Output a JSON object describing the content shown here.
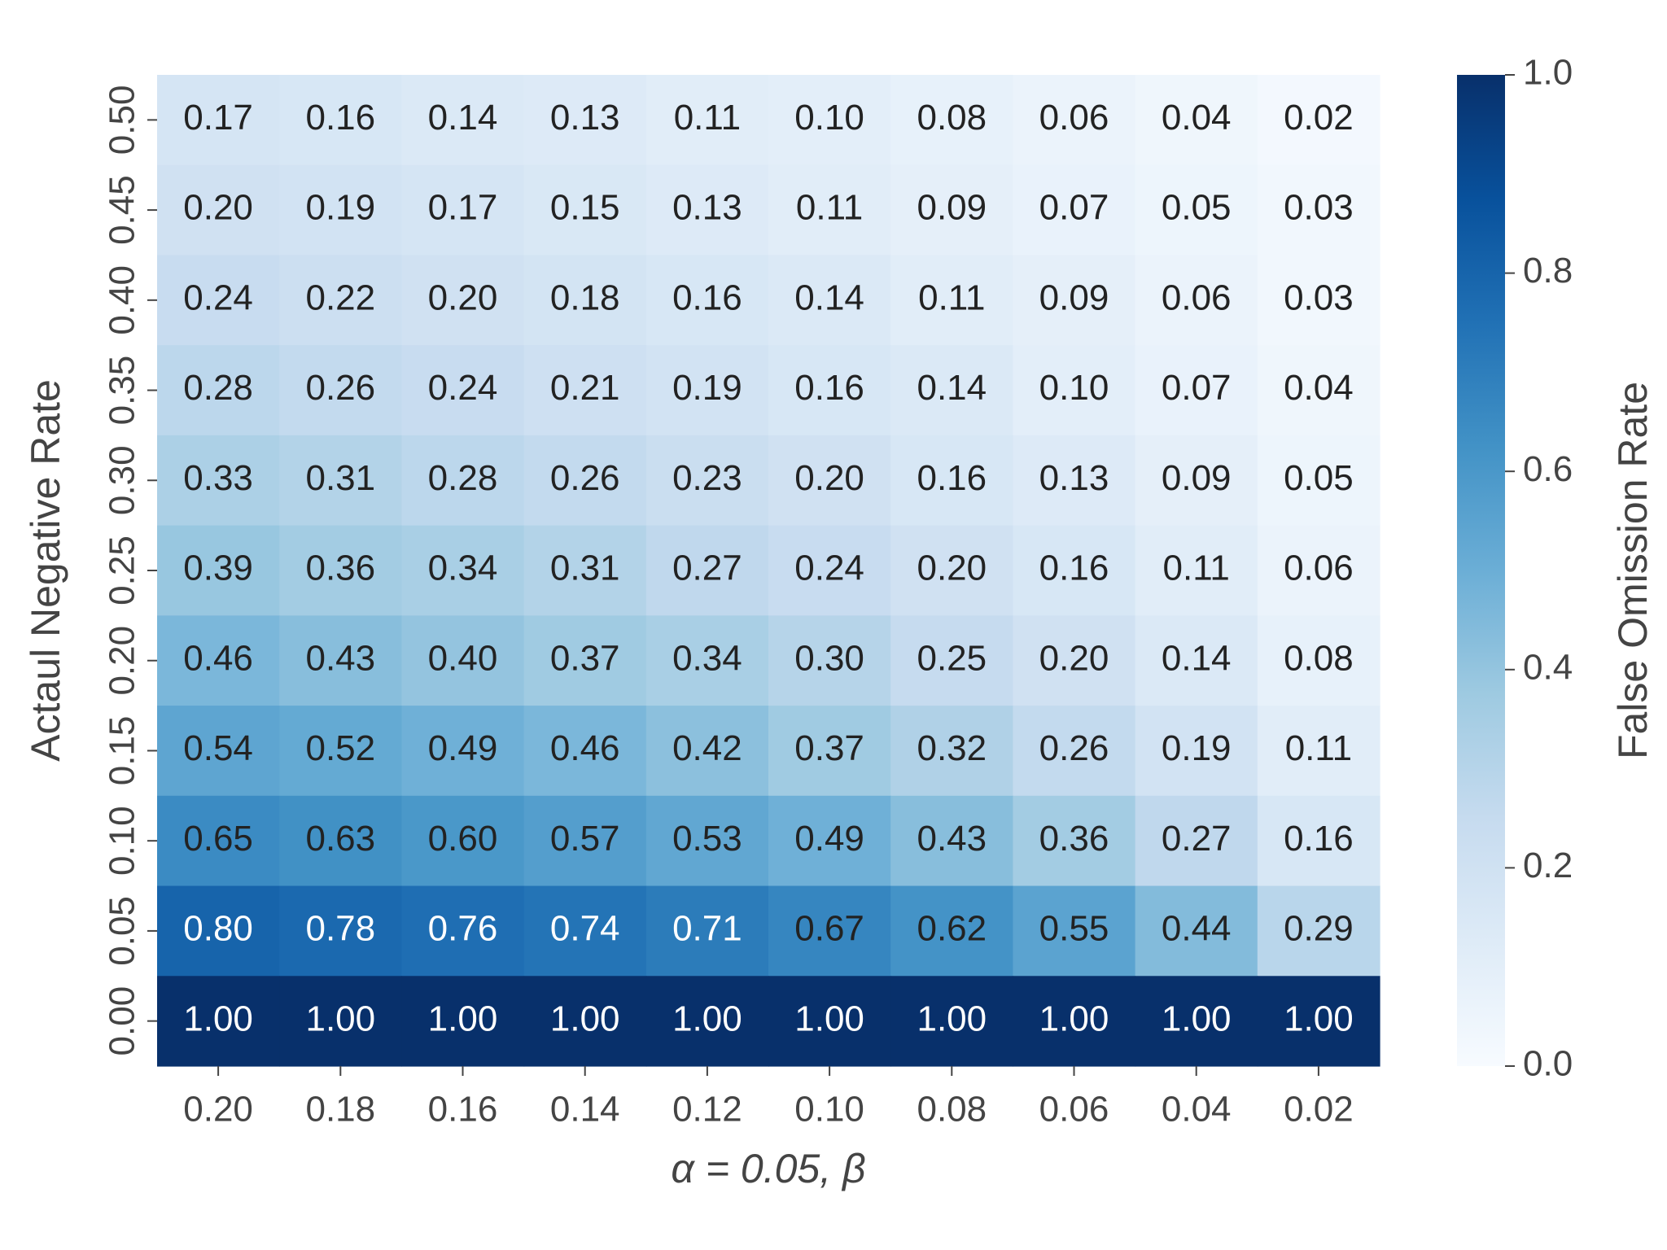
{
  "chart_data": {
    "type": "heatmap",
    "x_label": "α = 0.05, β",
    "y_label": "Actaul Negative Rate",
    "colorbar_label": "False Omission Rate",
    "colormap": "Blues",
    "x_categories": [
      "0.20",
      "0.18",
      "0.16",
      "0.14",
      "0.12",
      "0.10",
      "0.08",
      "0.06",
      "0.04",
      "0.02"
    ],
    "y_categories": [
      "0.50",
      "0.45",
      "0.40",
      "0.35",
      "0.30",
      "0.25",
      "0.20",
      "0.15",
      "0.10",
      "0.05",
      "0.00"
    ],
    "values": [
      [
        0.17,
        0.16,
        0.14,
        0.13,
        0.11,
        0.1,
        0.08,
        0.06,
        0.04,
        0.02
      ],
      [
        0.2,
        0.19,
        0.17,
        0.15,
        0.13,
        0.11,
        0.09,
        0.07,
        0.05,
        0.03
      ],
      [
        0.24,
        0.22,
        0.2,
        0.18,
        0.16,
        0.14,
        0.11,
        0.09,
        0.06,
        0.03
      ],
      [
        0.28,
        0.26,
        0.24,
        0.21,
        0.19,
        0.16,
        0.14,
        0.1,
        0.07,
        0.04
      ],
      [
        0.33,
        0.31,
        0.28,
        0.26,
        0.23,
        0.2,
        0.16,
        0.13,
        0.09,
        0.05
      ],
      [
        0.39,
        0.36,
        0.34,
        0.31,
        0.27,
        0.24,
        0.2,
        0.16,
        0.11,
        0.06
      ],
      [
        0.46,
        0.43,
        0.4,
        0.37,
        0.34,
        0.3,
        0.25,
        0.2,
        0.14,
        0.08
      ],
      [
        0.54,
        0.52,
        0.49,
        0.46,
        0.42,
        0.37,
        0.32,
        0.26,
        0.19,
        0.11
      ],
      [
        0.65,
        0.63,
        0.6,
        0.57,
        0.53,
        0.49,
        0.43,
        0.36,
        0.27,
        0.16
      ],
      [
        0.8,
        0.78,
        0.76,
        0.74,
        0.71,
        0.67,
        0.62,
        0.55,
        0.44,
        0.29
      ],
      [
        1.0,
        1.0,
        1.0,
        1.0,
        1.0,
        1.0,
        1.0,
        1.0,
        1.0,
        1.0
      ]
    ],
    "value_labels": [
      [
        "0.17",
        "0.16",
        "0.14",
        "0.13",
        "0.11",
        "0.10",
        "0.08",
        "0.06",
        "0.04",
        "0.02"
      ],
      [
        "0.20",
        "0.19",
        "0.17",
        "0.15",
        "0.13",
        "0.11",
        "0.09",
        "0.07",
        "0.05",
        "0.03"
      ],
      [
        "0.24",
        "0.22",
        "0.20",
        "0.18",
        "0.16",
        "0.14",
        "0.11",
        "0.09",
        "0.06",
        "0.03"
      ],
      [
        "0.28",
        "0.26",
        "0.24",
        "0.21",
        "0.19",
        "0.16",
        "0.14",
        "0.10",
        "0.07",
        "0.04"
      ],
      [
        "0.33",
        "0.31",
        "0.28",
        "0.26",
        "0.23",
        "0.20",
        "0.16",
        "0.13",
        "0.09",
        "0.05"
      ],
      [
        "0.39",
        "0.36",
        "0.34",
        "0.31",
        "0.27",
        "0.24",
        "0.20",
        "0.16",
        "0.11",
        "0.06"
      ],
      [
        "0.46",
        "0.43",
        "0.40",
        "0.37",
        "0.34",
        "0.30",
        "0.25",
        "0.20",
        "0.14",
        "0.08"
      ],
      [
        "0.54",
        "0.52",
        "0.49",
        "0.46",
        "0.42",
        "0.37",
        "0.32",
        "0.26",
        "0.19",
        "0.11"
      ],
      [
        "0.65",
        "0.63",
        "0.60",
        "0.57",
        "0.53",
        "0.49",
        "0.43",
        "0.36",
        "0.27",
        "0.16"
      ],
      [
        "0.80",
        "0.78",
        "0.76",
        "0.74",
        "0.71",
        "0.67",
        "0.62",
        "0.55",
        "0.44",
        "0.29"
      ],
      [
        "1.00",
        "1.00",
        "1.00",
        "1.00",
        "1.00",
        "1.00",
        "1.00",
        "1.00",
        "1.00",
        "1.00"
      ]
    ],
    "clim": [
      0,
      1
    ],
    "cticks": [
      {
        "value": 0,
        "label": "0.0"
      },
      0.2,
      0.4,
      0.6,
      0.8,
      {
        "value": 1,
        "label": "1.0"
      }
    ]
  }
}
